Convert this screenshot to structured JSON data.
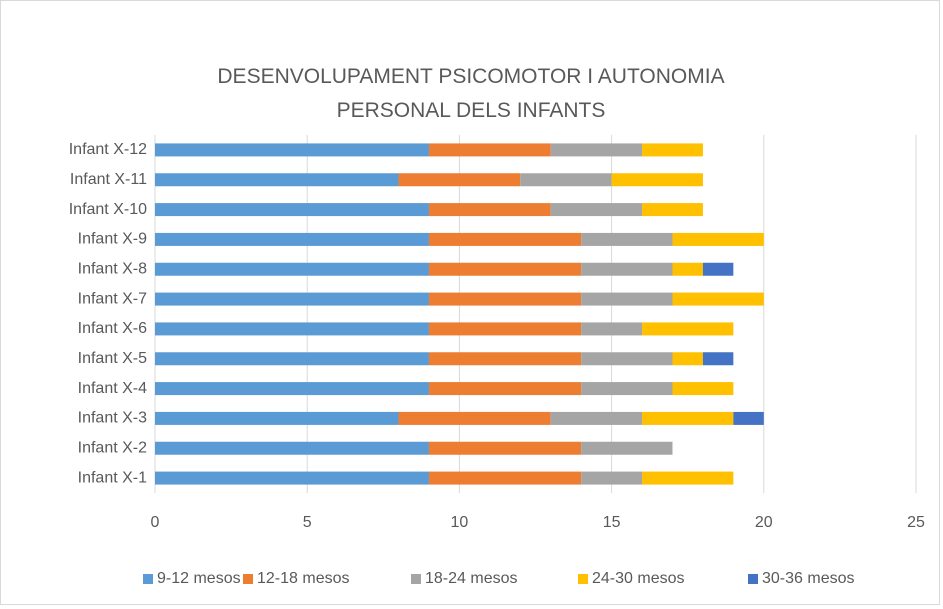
{
  "chart_data": {
    "type": "stacked_barh",
    "title": "DESENVOLUPAMENT PSICOMOTOR I AUTONOMIA PERSONAL DELS INFANTS",
    "categories": [
      "Infant X-1",
      "Infant X-2",
      "Infant X-3",
      "Infant X-4",
      "Infant X-5",
      "Infant X-6",
      "Infant X-7",
      "Infant X-8",
      "Infant X-9",
      "Infant X-10",
      "Infant X-11",
      "Infant X-12"
    ],
    "series": [
      {
        "name": "9-12 mesos",
        "color": "#5b9bd5",
        "values": [
          9,
          9,
          8,
          9,
          9,
          9,
          9,
          9,
          9,
          9,
          8,
          9
        ]
      },
      {
        "name": "12-18 mesos",
        "color": "#ed7d31",
        "values": [
          5,
          5,
          5,
          5,
          5,
          5,
          5,
          5,
          5,
          4,
          4,
          4
        ]
      },
      {
        "name": "18-24 mesos",
        "color": "#a5a5a5",
        "values": [
          2,
          3,
          3,
          3,
          3,
          2,
          3,
          3,
          3,
          3,
          3,
          3
        ]
      },
      {
        "name": "24-30 mesos",
        "color": "#ffc000",
        "values": [
          3,
          0,
          3,
          2,
          1,
          3,
          3,
          1,
          3,
          2,
          3,
          2
        ]
      },
      {
        "name": "30-36 mesos",
        "color": "#4472c4",
        "values": [
          0,
          0,
          1,
          0,
          1,
          0,
          0,
          1,
          0,
          0,
          0,
          0
        ]
      }
    ],
    "xlim": [
      0,
      25
    ],
    "xticks": [
      0,
      5,
      10,
      15,
      20,
      25
    ],
    "grid": true,
    "legend": "bottom"
  }
}
